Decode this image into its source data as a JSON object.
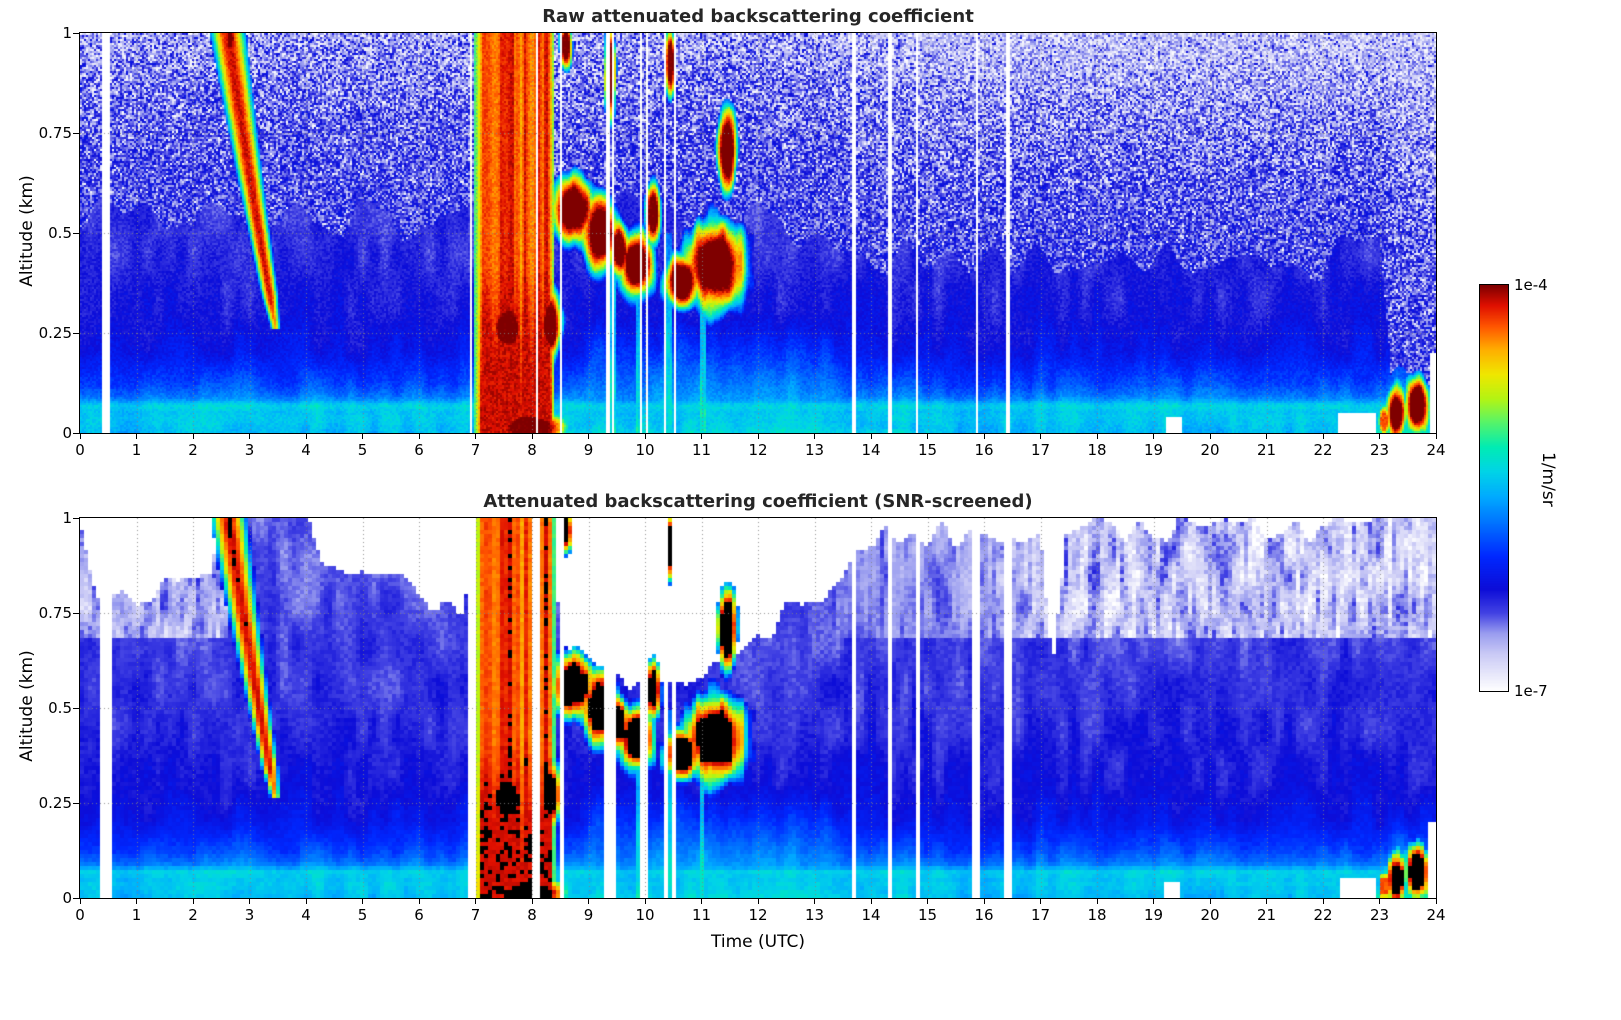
{
  "axes": {
    "xlabel": "Time (UTC)",
    "ylabel": "Altitude (km)",
    "xticks": [
      0,
      1,
      2,
      3,
      4,
      5,
      6,
      7,
      8,
      9,
      10,
      11,
      12,
      13,
      14,
      15,
      16,
      17,
      18,
      19,
      20,
      21,
      22,
      23,
      24
    ],
    "xtick_labels": [
      "0",
      "1",
      "2",
      "3",
      "4",
      "5",
      "6",
      "7",
      "8",
      "9",
      "10",
      "11",
      "12",
      "13",
      "14",
      "15",
      "16",
      "17",
      "18",
      "19",
      "20",
      "21",
      "22",
      "23",
      "24"
    ],
    "yticks": [
      1,
      0.75,
      0.5,
      0.25,
      0
    ],
    "ytick_labels": [
      "1",
      "0.75",
      "0.5",
      "0.25",
      "0"
    ]
  },
  "colorbar": {
    "max_label": "1e-4",
    "min_label": "1e-7",
    "unit_label": "1/m/sr"
  },
  "colormap": {
    "stops": [
      [
        0.0,
        "#ffffff"
      ],
      [
        0.04,
        "#e8e8fb"
      ],
      [
        0.09,
        "#cacaf6"
      ],
      [
        0.14,
        "#9b9ef0"
      ],
      [
        0.19,
        "#4444e4"
      ],
      [
        0.25,
        "#0d0dd8"
      ],
      [
        0.33,
        "#0028ff"
      ],
      [
        0.41,
        "#0070ff"
      ],
      [
        0.48,
        "#00acff"
      ],
      [
        0.54,
        "#00d4e8"
      ],
      [
        0.6,
        "#00ecb4"
      ],
      [
        0.66,
        "#54f46c"
      ],
      [
        0.72,
        "#b4f414"
      ],
      [
        0.78,
        "#f0e800"
      ],
      [
        0.84,
        "#ffb000"
      ],
      [
        0.9,
        "#ff5400"
      ],
      [
        0.95,
        "#e01000"
      ],
      [
        1.0,
        "#7f0000"
      ]
    ]
  },
  "chart_data": [
    {
      "type": "heatmap",
      "title": "Raw attenuated backscattering coefficient",
      "xlabel": "",
      "ylabel": "Altitude (km)",
      "xlim": [
        0,
        24
      ],
      "ylim": [
        0,
        1
      ],
      "xticks": [
        0,
        1,
        2,
        3,
        4,
        5,
        6,
        7,
        8,
        9,
        10,
        11,
        12,
        13,
        14,
        15,
        16,
        17,
        18,
        19,
        20,
        21,
        22,
        23,
        24
      ],
      "yticks": [
        0,
        0.25,
        0.5,
        0.75,
        1
      ],
      "value_scale": "log10 attenuated backscatter (1/m/sr)",
      "value_range_log10": [
        -7,
        -4
      ],
      "screened": false,
      "features": {
        "background_profile_log10": [
          [
            0,
            -5.5
          ],
          [
            0.04,
            -5.42
          ],
          [
            0.07,
            -5.62
          ],
          [
            0.12,
            -5.9
          ],
          [
            0.2,
            -6.15
          ],
          [
            0.3,
            -6.28
          ],
          [
            0.5,
            -6.36
          ],
          [
            0.7,
            -6.42
          ],
          [
            1,
            -6.5
          ]
        ],
        "surface_cyan_layer_top_km": 0.07,
        "daytime_mixed_layer": {
          "t_start": 8.4,
          "t_end": 15.5,
          "max_top_km": 0.34,
          "log10_value_surface": -5.35
        },
        "virga_streak": {
          "t_at_top": 2.62,
          "t_at_tip": 3.45,
          "z_top_km": 1.0,
          "z_tip_km": 0.3,
          "core_log10": -4.12
        },
        "rain_event": {
          "t_start": 6.97,
          "t_end": 8.4,
          "column_log10_range": [
            -4.7,
            -4.2
          ],
          "near_surface_log10": -4.12,
          "intense_core_t": [
            7.42,
            7.68
          ]
        },
        "cloud_layers": [
          [
            7.57,
            0.26,
            0.23,
            0.05,
            -3.95
          ],
          [
            8.33,
            0.27,
            0.14,
            0.06,
            -3.95
          ],
          [
            8.72,
            0.56,
            0.28,
            0.06,
            -3.92
          ],
          [
            9.2,
            0.5,
            0.22,
            0.07,
            -3.92
          ],
          [
            9.55,
            0.46,
            0.12,
            0.05,
            -3.95
          ],
          [
            9.85,
            0.42,
            0.22,
            0.06,
            -3.92
          ],
          [
            10.15,
            0.55,
            0.1,
            0.06,
            -3.95
          ],
          [
            10.65,
            0.38,
            0.22,
            0.05,
            -3.92
          ],
          [
            11.25,
            0.42,
            0.38,
            0.08,
            -3.9
          ],
          [
            11.45,
            0.71,
            0.13,
            0.08,
            -3.92
          ],
          [
            9.38,
            0.9,
            0.07,
            0.08,
            -3.95
          ],
          [
            10.45,
            0.93,
            0.06,
            0.06,
            -3.95
          ],
          [
            8.6,
            0.97,
            0.08,
            0.045,
            -3.95
          ],
          [
            2.66,
            0.985,
            0.06,
            0.03,
            -3.95
          ],
          [
            7.95,
            0.015,
            0.45,
            0.03,
            -3.95
          ],
          [
            23.3,
            0.05,
            0.12,
            0.05,
            -3.92
          ],
          [
            23.66,
            0.07,
            0.16,
            0.055,
            -3.9
          ],
          [
            23.08,
            0.03,
            0.08,
            0.03,
            -4.3
          ]
        ],
        "drizzle_shaft_times": [
          9.42,
          9.88,
          10.42,
          11.02
        ],
        "evening_event": {
          "t_start": 22.85,
          "t_end": 23.92,
          "top_km_peak": 0.24
        },
        "data_gap_times": [
          0.43,
          0.5,
          6.93,
          8.08,
          8.52,
          9.35,
          9.44,
          9.93,
          10.03,
          10.36,
          10.52,
          13.7,
          14.33,
          14.82,
          15.87,
          16.42
        ],
        "surface_gap_spans": [
          [
            19.22,
            19.5,
            0.04
          ],
          [
            22.28,
            22.95,
            0.05
          ],
          [
            23.88,
            24.0,
            0.2
          ]
        ],
        "noise_speckle_base_km": {
          "t0_12h": 0.54,
          "t15_23h": 0.44
        }
      }
    },
    {
      "type": "heatmap",
      "title": "Attenuated backscattering coefficient (SNR-screened)",
      "xlabel": "Time (UTC)",
      "ylabel": "Altitude (km)",
      "xlim": [
        0,
        24
      ],
      "ylim": [
        0,
        1
      ],
      "xticks": [
        0,
        1,
        2,
        3,
        4,
        5,
        6,
        7,
        8,
        9,
        10,
        11,
        12,
        13,
        14,
        15,
        16,
        17,
        18,
        19,
        20,
        21,
        22,
        23,
        24
      ],
      "yticks": [
        0,
        0.25,
        0.5,
        0.75,
        1
      ],
      "value_scale": "log10 attenuated backscatter (1/m/sr)",
      "value_range_log10": [
        -7,
        -4
      ],
      "screened": true,
      "screening": {
        "mask_top_km": [
          [
            0,
            1.02
          ],
          [
            0.3,
            0.78
          ],
          [
            1.5,
            0.8
          ],
          [
            2.3,
            0.85
          ],
          [
            2.55,
            1.05
          ],
          [
            3.9,
            1.05
          ],
          [
            4.3,
            0.88
          ],
          [
            5.7,
            0.86
          ],
          [
            6.0,
            0.8
          ],
          [
            6.8,
            0.74
          ],
          [
            7.0,
            1.05
          ],
          [
            8.32,
            1.05
          ],
          [
            8.5,
            0.72
          ],
          [
            8.75,
            0.6
          ],
          [
            9.3,
            0.55
          ],
          [
            10.5,
            0.56
          ],
          [
            11.5,
            0.6
          ],
          [
            12.1,
            0.66
          ],
          [
            12.5,
            0.78
          ],
          [
            13.1,
            0.73
          ],
          [
            13.7,
            0.93
          ],
          [
            14.5,
            0.95
          ],
          [
            17.0,
            0.97
          ],
          [
            17.22,
            0.58
          ],
          [
            17.45,
            0.95
          ],
          [
            18.0,
            0.97
          ],
          [
            22.9,
            0.97
          ],
          [
            23.25,
            1.05
          ],
          [
            24,
            1.05
          ]
        ],
        "saturated_black_above_log10": -4.1,
        "weak_signal_mottle_zone_km": 0.68
      }
    }
  ]
}
